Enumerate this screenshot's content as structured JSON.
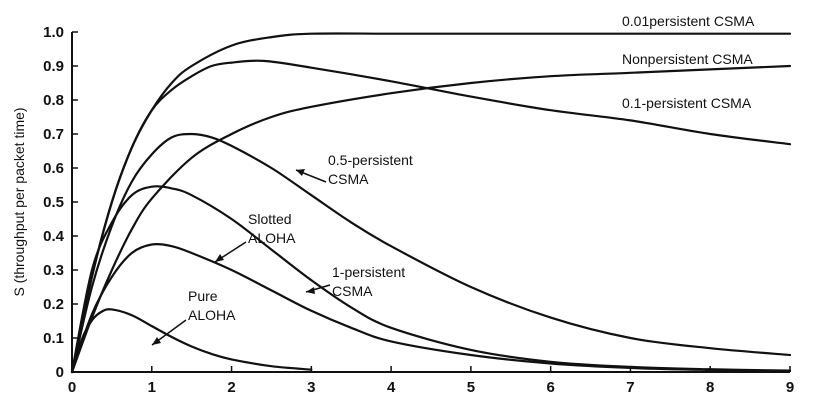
{
  "chart_data": {
    "type": "line",
    "title": "",
    "xlabel": "",
    "ylabel": "S (throughput per packet time)",
    "xlim": [
      0,
      9
    ],
    "ylim": [
      0,
      1.0
    ],
    "x_ticks": [
      "0",
      "1",
      "2",
      "3",
      "4",
      "5",
      "6",
      "7",
      "8",
      "9"
    ],
    "y_ticks": [
      "0",
      "0.1",
      "0.2",
      "0.3",
      "0.4",
      "0.5",
      "0.6",
      "0.7",
      "0.8",
      "0.9",
      "1.0"
    ],
    "grid": false,
    "legend": "none",
    "series": [
      {
        "name": "0.01persistent CSMA",
        "x": [
          0,
          0.25,
          0.5,
          0.75,
          1,
          1.25,
          1.5,
          2,
          2.5,
          3,
          4,
          5,
          6,
          7,
          8,
          9
        ],
        "y": [
          0,
          0.28,
          0.5,
          0.66,
          0.77,
          0.85,
          0.9,
          0.96,
          0.985,
          0.995,
          0.995,
          0.995,
          0.995,
          0.995,
          0.995,
          0.995
        ]
      },
      {
        "name": "Nonpersistent CSMA",
        "x": [
          0,
          0.25,
          0.5,
          0.75,
          1,
          1.25,
          1.5,
          1.75,
          2,
          2.4,
          3,
          4,
          5,
          6,
          7,
          8,
          9
        ],
        "y": [
          0,
          0.28,
          0.5,
          0.66,
          0.77,
          0.83,
          0.87,
          0.9,
          0.91,
          0.915,
          0.895,
          0.855,
          0.81,
          0.77,
          0.74,
          0.7,
          0.67
        ]
      },
      {
        "name": "0.1-persistent CSMA",
        "x": [
          0,
          0.25,
          0.5,
          0.75,
          1,
          1.5,
          2,
          2.5,
          3,
          4,
          5,
          6,
          7,
          8,
          9
        ],
        "y": [
          0,
          0.16,
          0.3,
          0.42,
          0.51,
          0.63,
          0.7,
          0.75,
          0.78,
          0.82,
          0.85,
          0.87,
          0.88,
          0.89,
          0.9
        ]
      },
      {
        "name": "0.5-persistent CSMA",
        "x": [
          0,
          0.25,
          0.5,
          0.75,
          1,
          1.25,
          1.5,
          1.75,
          2,
          2.5,
          3,
          3.5,
          4,
          5,
          6,
          7,
          8,
          9
        ],
        "y": [
          0,
          0.25,
          0.43,
          0.56,
          0.64,
          0.69,
          0.7,
          0.69,
          0.665,
          0.6,
          0.52,
          0.44,
          0.37,
          0.25,
          0.16,
          0.1,
          0.07,
          0.05
        ]
      },
      {
        "name": "Slotted ALOHA",
        "x": [
          0,
          0.25,
          0.5,
          0.75,
          1,
          1.25,
          1.5,
          2,
          2.5,
          3,
          3.5,
          4,
          5,
          6,
          7,
          8,
          9
        ],
        "y": [
          0,
          0.3,
          0.44,
          0.52,
          0.545,
          0.54,
          0.52,
          0.45,
          0.36,
          0.27,
          0.19,
          0.13,
          0.065,
          0.03,
          0.015,
          0.008,
          0.004
        ]
      },
      {
        "name": "1-persistent CSMA",
        "x": [
          0,
          0.25,
          0.5,
          0.75,
          1,
          1.25,
          1.5,
          2,
          2.5,
          3,
          3.5,
          4,
          5,
          6,
          7,
          8,
          9
        ],
        "y": [
          0,
          0.17,
          0.28,
          0.35,
          0.375,
          0.37,
          0.35,
          0.3,
          0.24,
          0.18,
          0.13,
          0.09,
          0.05,
          0.025,
          0.012,
          0.006,
          0.003
        ]
      },
      {
        "name": "Pure ALOHA",
        "x": [
          0,
          0.125,
          0.25,
          0.375,
          0.5,
          0.75,
          1,
          1.25,
          1.5,
          1.75,
          2,
          2.5,
          3
        ],
        "y": [
          0,
          0.097,
          0.152,
          0.178,
          0.184,
          0.167,
          0.135,
          0.103,
          0.075,
          0.053,
          0.037,
          0.017,
          0.007
        ]
      }
    ],
    "labels": [
      {
        "text": "0.01persistent CSMA"
      },
      {
        "text": "Nonpersistent CSMA"
      },
      {
        "text": "0.1-persistent CSMA"
      },
      {
        "text": "0.5-persistent"
      },
      {
        "text": "CSMA"
      },
      {
        "text": "Slotted"
      },
      {
        "text": "ALOHA"
      },
      {
        "text": "1-persistent"
      },
      {
        "text": "CSMA"
      },
      {
        "text": "Pure"
      },
      {
        "text": "ALOHA"
      }
    ]
  }
}
